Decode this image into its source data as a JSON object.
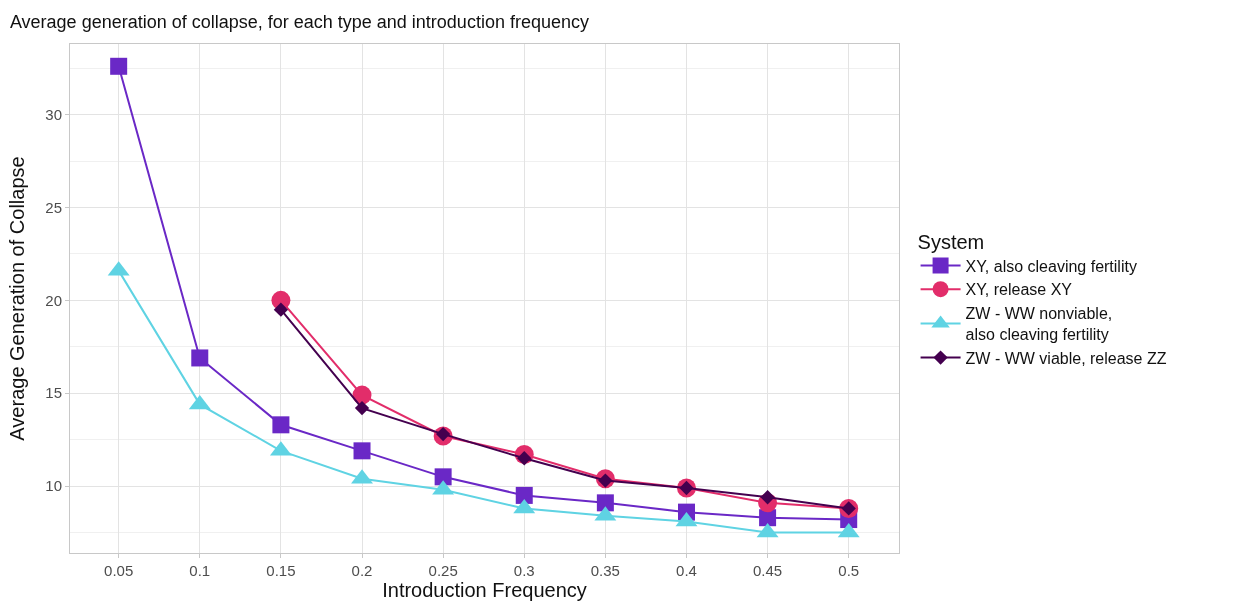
{
  "chart_data": {
    "type": "line",
    "title": "Average generation of collapse, for each type and introduction frequency",
    "xlabel": "Introduction Frequency",
    "ylabel": "Average Generation of Collapse",
    "legend_title": "System",
    "x": [
      0.05,
      0.1,
      0.15,
      0.2,
      0.25,
      0.3,
      0.35,
      0.4,
      0.45,
      0.5
    ],
    "xlim": [
      0.02,
      0.531
    ],
    "xticks": [
      0.05,
      0.1,
      0.15,
      0.2,
      0.25,
      0.3,
      0.35,
      0.4,
      0.45,
      0.5
    ],
    "ylim": [
      6.4,
      33.8
    ],
    "yticks": [
      10,
      15,
      20,
      25,
      30
    ],
    "grid": true,
    "legend": "right",
    "series": [
      {
        "name": "XY, also cleaving fertility",
        "color": "#6a28c6",
        "marker": "square",
        "values": [
          32.6,
          16.9,
          13.3,
          11.9,
          10.5,
          9.5,
          9.1,
          8.6,
          8.3,
          8.2
        ]
      },
      {
        "name": "XY, release XY",
        "color": "#e22d6a",
        "marker": "circle",
        "values": [
          null,
          null,
          20.0,
          14.9,
          12.7,
          11.7,
          10.4,
          9.9,
          9.1,
          8.8
        ]
      },
      {
        "name": "ZW - WW nonviable,\nalso cleaving fertility",
        "color": "#5fd3e3",
        "marker": "triangle",
        "values": [
          21.6,
          14.4,
          11.9,
          10.4,
          9.8,
          8.8,
          8.4,
          8.1,
          7.5,
          7.5
        ]
      },
      {
        "name": "ZW - WW viable, release ZZ",
        "color": "#44004f",
        "marker": "diamond",
        "values": [
          null,
          null,
          19.5,
          14.2,
          12.8,
          11.5,
          10.3,
          9.9,
          9.4,
          8.8
        ]
      }
    ]
  }
}
